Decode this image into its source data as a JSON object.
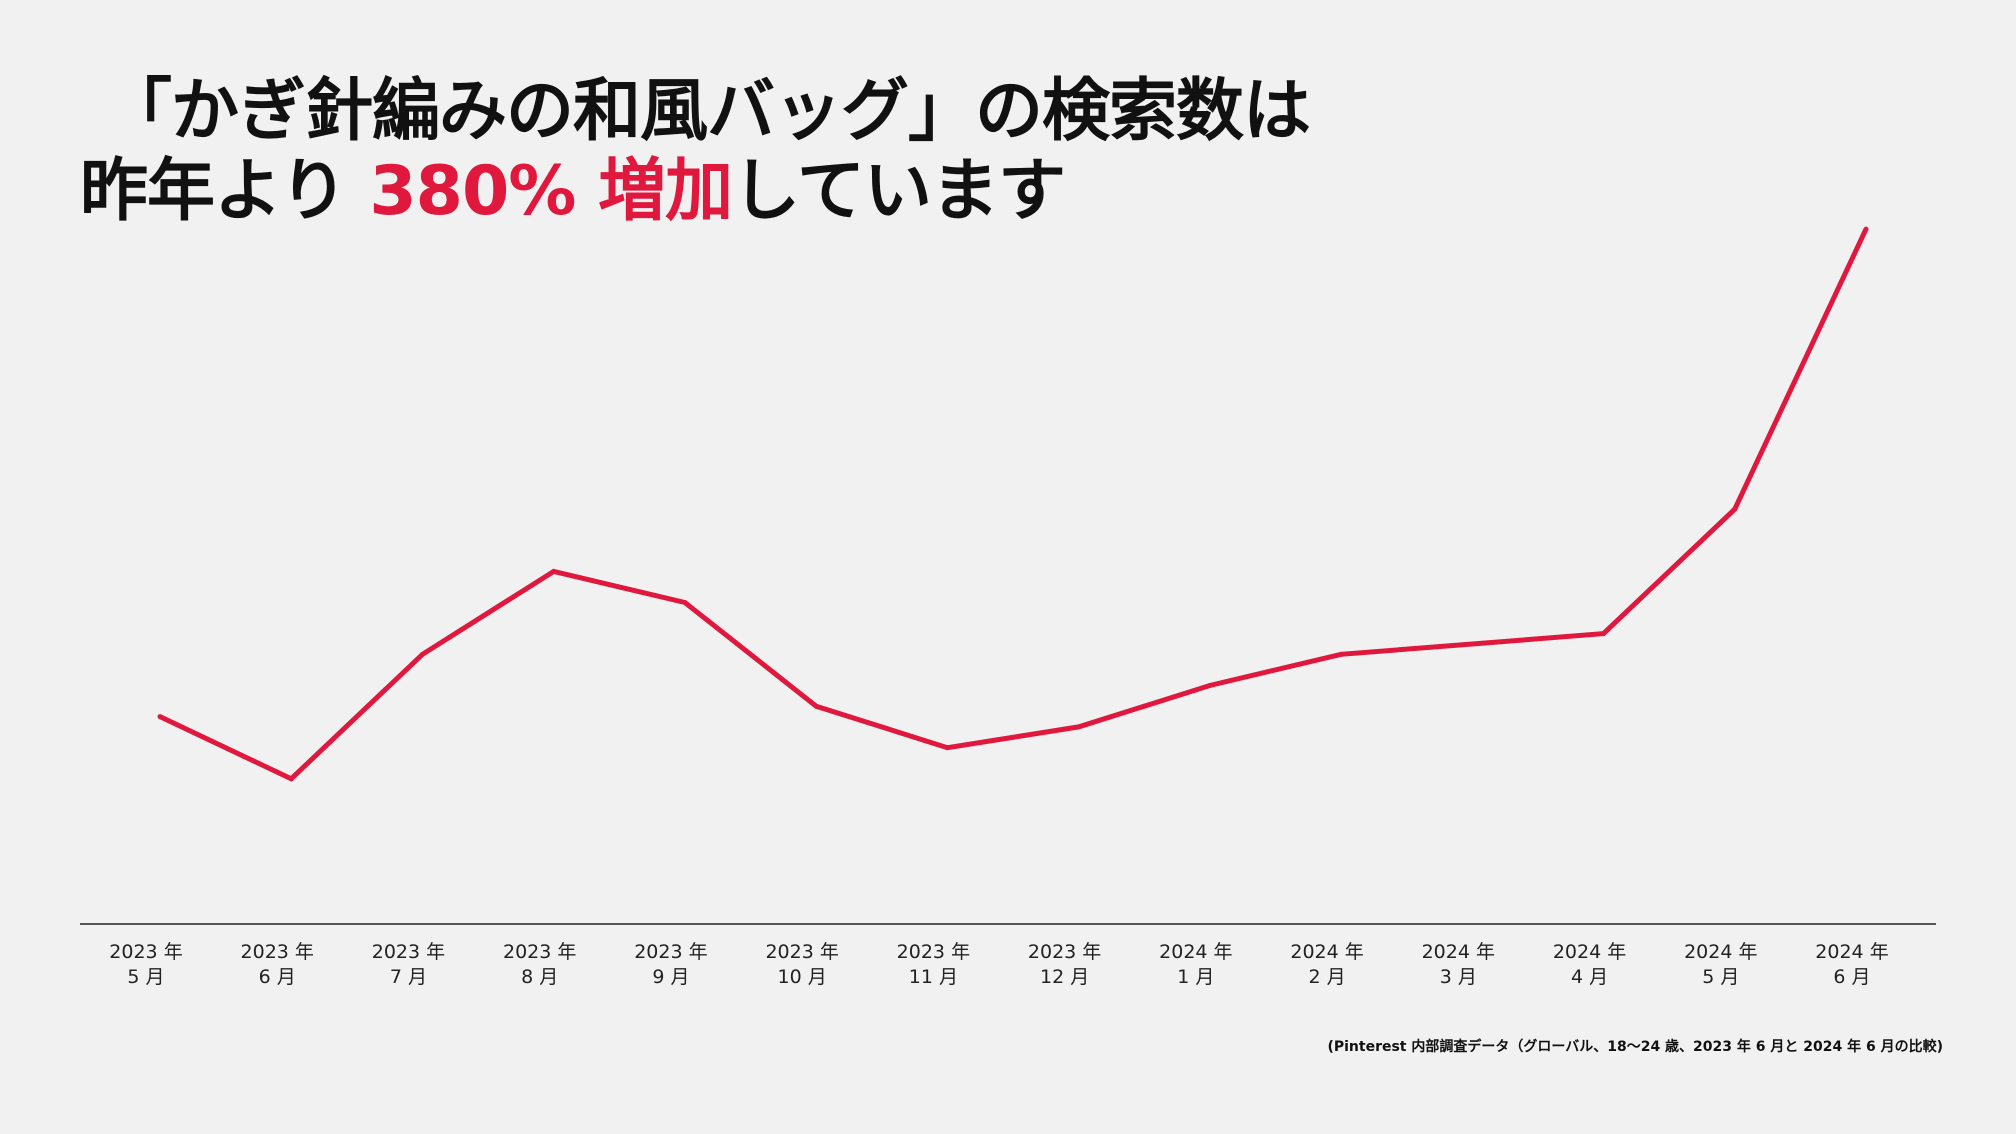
{
  "headline": {
    "line1": "「かぎ針編みの和風バッグ」の検索数は",
    "line2_prefix": "昨年より ",
    "line2_highlight": "380% 増加",
    "line2_suffix": "しています"
  },
  "colors": {
    "accent": "#e0183d",
    "background": "#f2f1f1",
    "text": "#111111",
    "axis": "#222222"
  },
  "chart_data": {
    "type": "line",
    "title": "「かぎ針編みの和風バッグ」の検索数は昨年より 380% 増加しています",
    "xlabel": "",
    "ylabel": "",
    "grid": false,
    "legend": "none",
    "categories": [
      [
        "2023 年",
        "5 月"
      ],
      [
        "2023 年",
        "6 月"
      ],
      [
        "2023 年",
        "7 月"
      ],
      [
        "2023 年",
        "8 月"
      ],
      [
        "2023 年",
        "9 月"
      ],
      [
        "2023 年",
        "10 月"
      ],
      [
        "2023 年",
        "11 月"
      ],
      [
        "2023 年",
        "12 月"
      ],
      [
        "2024 年",
        "1 月"
      ],
      [
        "2024 年",
        "2 月"
      ],
      [
        "2024 年",
        "3 月"
      ],
      [
        "2024 年",
        "4 月"
      ],
      [
        "2024 年",
        "5 月"
      ],
      [
        "2024 年",
        "6 月"
      ]
    ],
    "values": [
      20,
      14,
      26,
      34,
      31,
      21,
      17,
      19,
      23,
      26,
      27,
      28,
      40,
      67
    ],
    "ylim": [
      0,
      70
    ]
  },
  "footnote": "(Pinterest 内部調査データ（グローバル、18〜24 歳、2023 年 6 月と 2024 年 6 月の比較)"
}
